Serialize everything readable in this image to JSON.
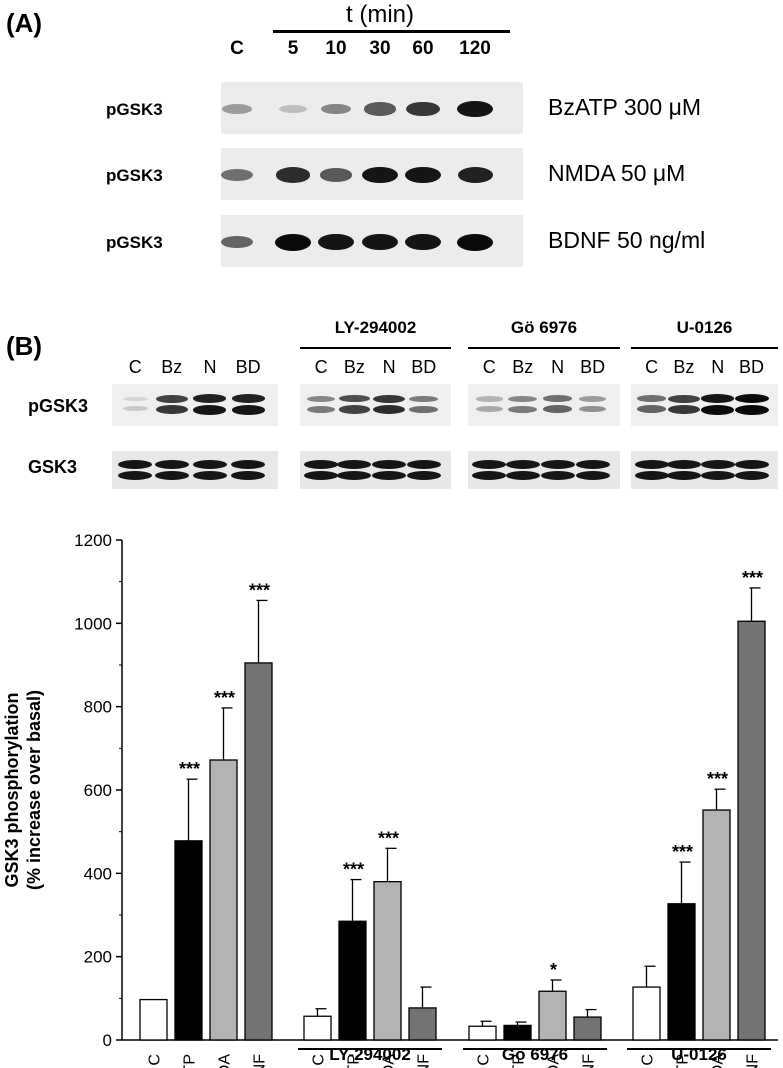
{
  "panelA": {
    "label": "(A)",
    "time_header": "t (min)",
    "lanes": [
      "C",
      "5",
      "10",
      "30",
      "60",
      "120"
    ],
    "rows": [
      {
        "label": "pGSK3",
        "treatment": "BzATP 300 μM",
        "intensity": [
          0.35,
          0.2,
          0.45,
          0.65,
          0.8,
          0.95
        ]
      },
      {
        "label": "pGSK3",
        "treatment": "NMDA 50 μM",
        "intensity": [
          0.55,
          0.85,
          0.65,
          0.95,
          0.95,
          0.9
        ]
      },
      {
        "label": "pGSK3",
        "treatment": "BDNF 50 ng/ml",
        "intensity": [
          0.6,
          1.0,
          0.95,
          0.95,
          0.95,
          1.0
        ]
      }
    ]
  },
  "panelB": {
    "label": "(B)",
    "lane_labels": [
      "C",
      "Bz",
      "N",
      "BD"
    ],
    "groups": [
      "",
      "LY-294002",
      "Gö 6976",
      "U-0126"
    ],
    "row_labels": {
      "pgsk3": "pGSK3",
      "gsk3": "GSK3"
    },
    "pgsk3_intensity": [
      [
        0.1,
        0.75,
        0.9,
        0.9
      ],
      [
        0.45,
        0.7,
        0.8,
        0.5
      ],
      [
        0.25,
        0.45,
        0.55,
        0.35
      ],
      [
        0.55,
        0.75,
        0.95,
        1.0
      ]
    ]
  },
  "chart_data": {
    "type": "bar",
    "ylabel_line1": "GSK3 phosphorylation",
    "ylabel_line2": "(% increase over basal)",
    "ylim": [
      0,
      1200
    ],
    "yticks": [
      "0",
      "200",
      "400",
      "600",
      "800",
      "1000",
      "1200"
    ],
    "categories": [
      "C",
      "BzATP",
      "NMDA",
      "BDNF"
    ],
    "series_colors": [
      "#ffffff",
      "#000000",
      "#b3b3b3",
      "#737373"
    ],
    "groups": [
      {
        "name": "",
        "values": [
          97,
          478,
          672,
          905
        ],
        "errors": [
          0,
          148,
          125,
          150
        ],
        "sig": [
          "",
          "***",
          "***",
          "***"
        ]
      },
      {
        "name": "LY-294002",
        "values": [
          57,
          285,
          380,
          77
        ],
        "errors": [
          18,
          100,
          80,
          50
        ],
        "sig": [
          "",
          "***",
          "***",
          ""
        ]
      },
      {
        "name": "Gö 6976",
        "values": [
          33,
          35,
          117,
          55
        ],
        "errors": [
          12,
          8,
          27,
          18
        ],
        "sig": [
          "",
          "",
          "*",
          ""
        ]
      },
      {
        "name": "U-0126",
        "values": [
          127,
          327,
          552,
          1005
        ],
        "errors": [
          50,
          100,
          50,
          80
        ],
        "sig": [
          "",
          "***",
          "***",
          "***"
        ]
      }
    ]
  }
}
